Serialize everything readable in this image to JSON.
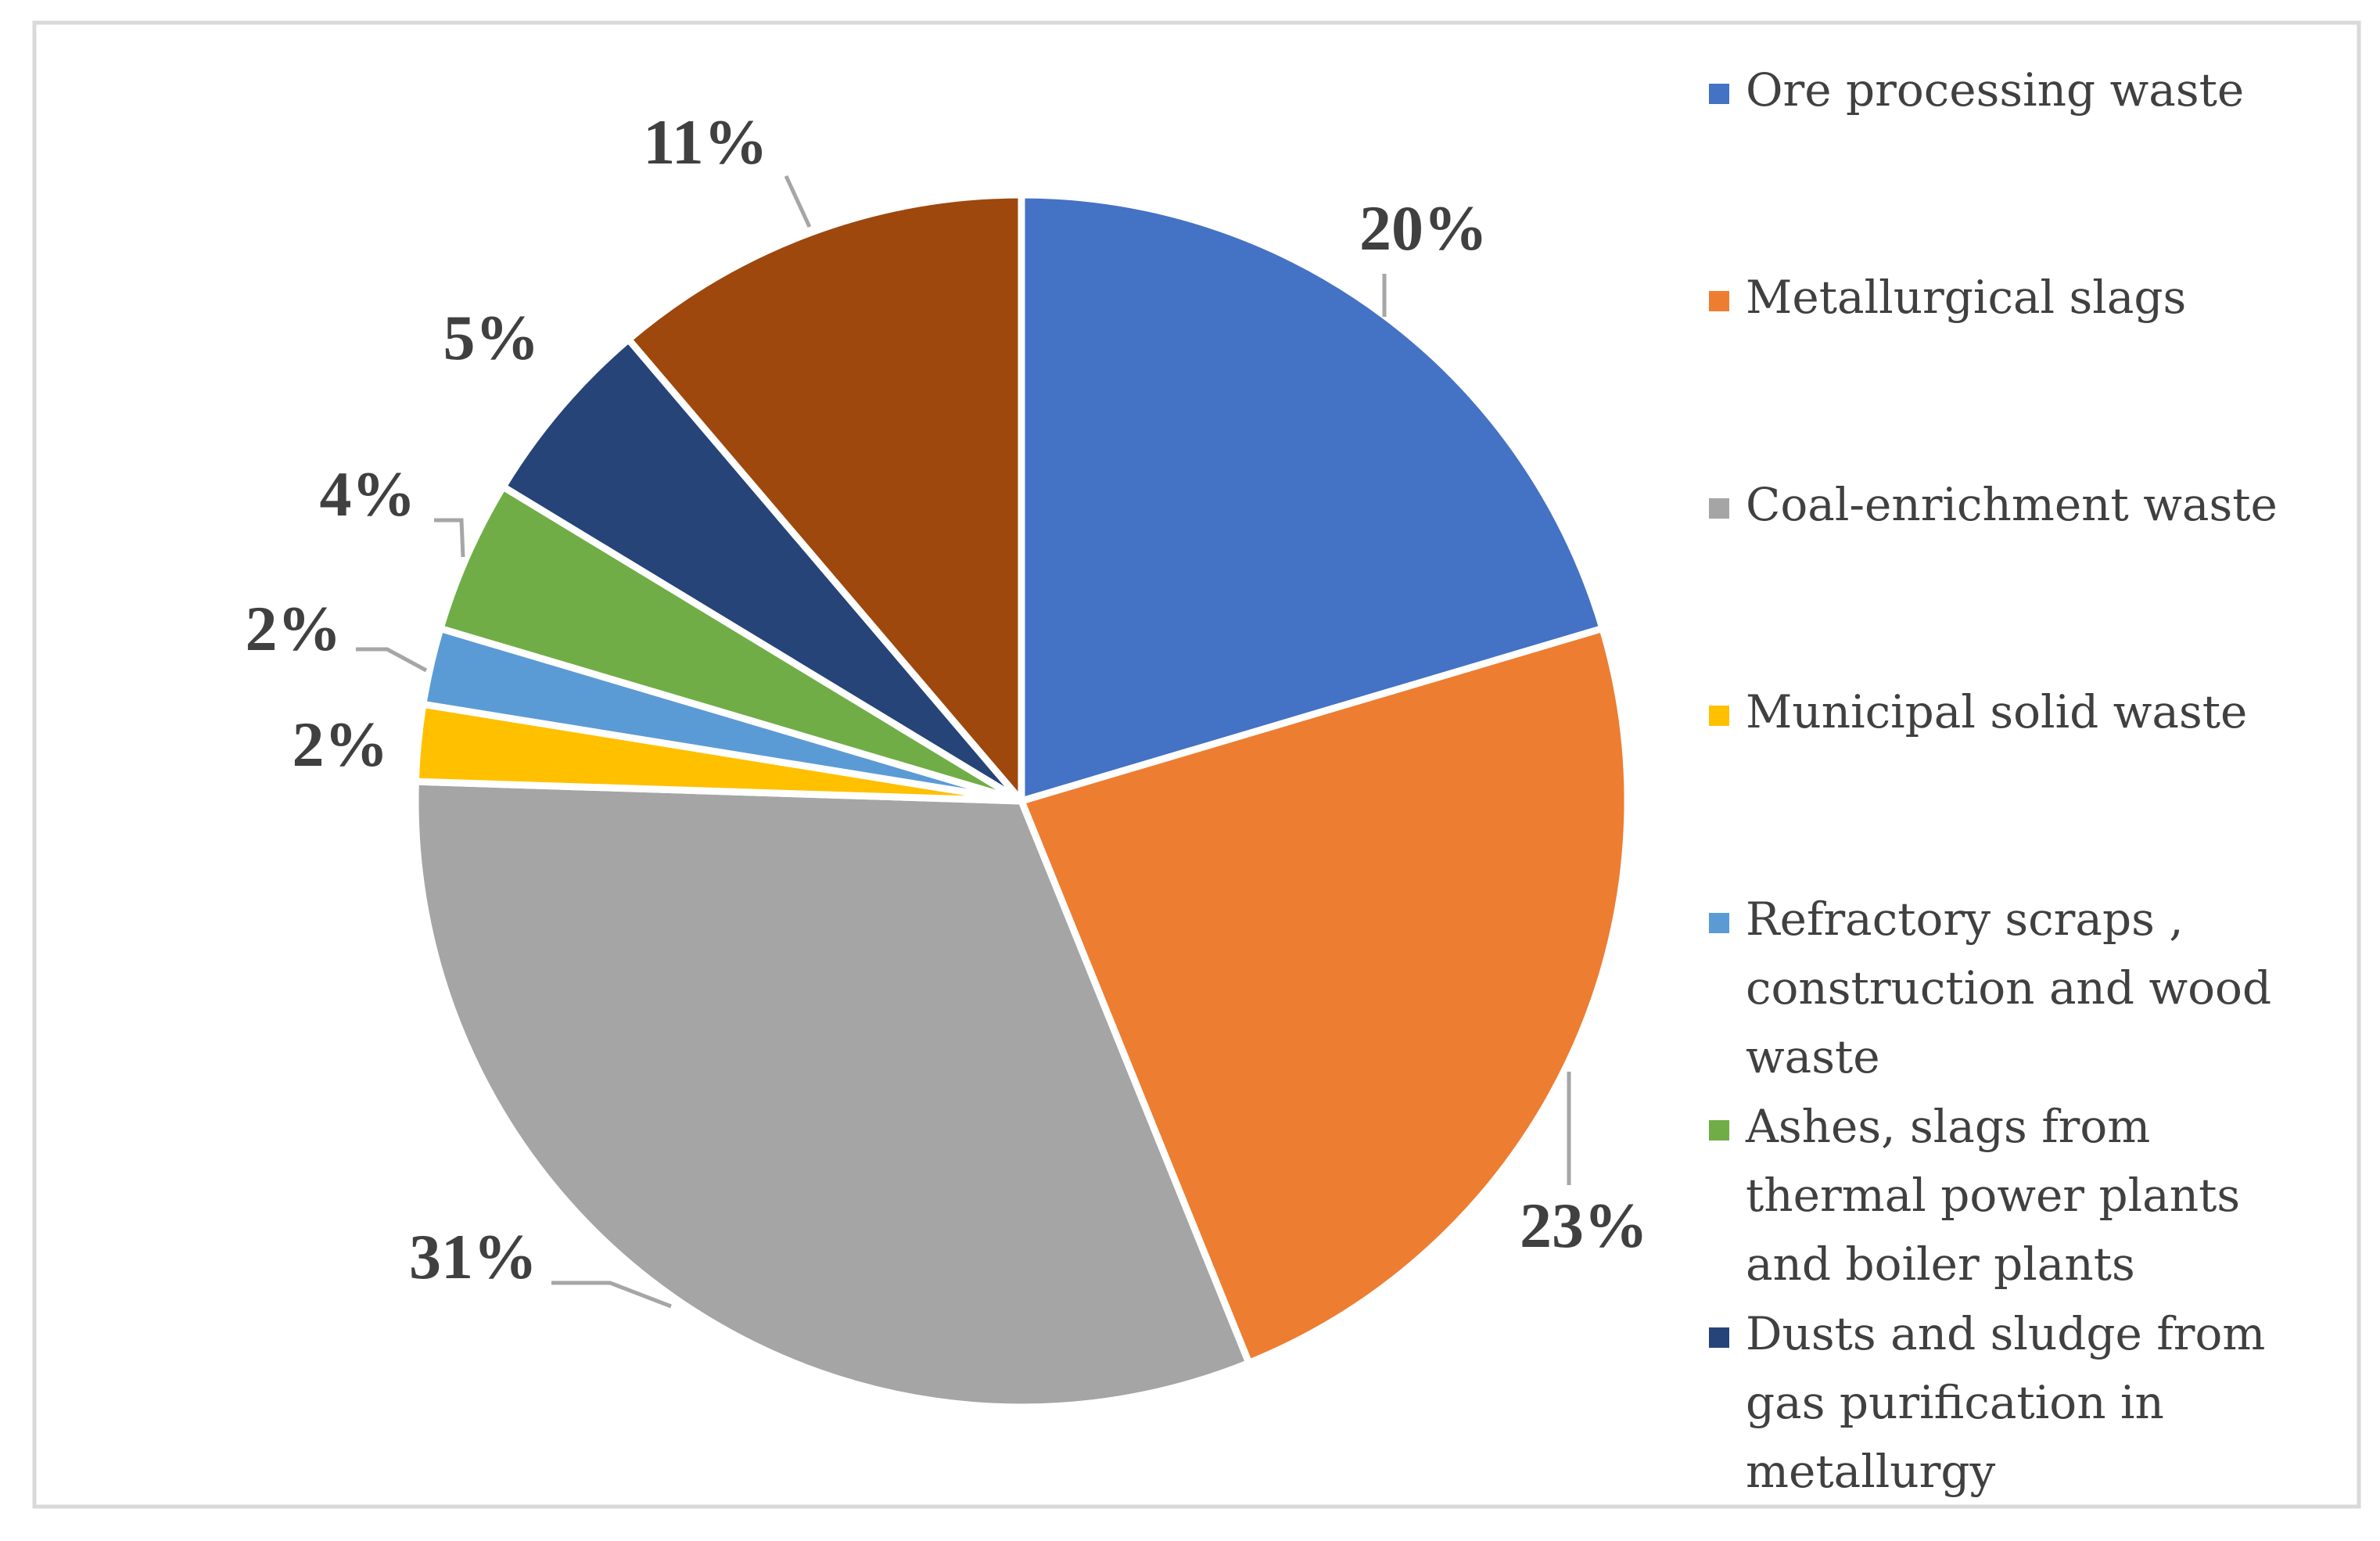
{
  "chart_data": {
    "type": "pie",
    "categories": [
      "Ore processing waste",
      "Metallurgical slags",
      "Coal-enrichment waste",
      "Municipal solid waste",
      "Refractory scraps , construction and wood waste",
      "Ashes, slags from thermal power plants and boiler plants",
      "Dusts and sludge from gas purification in metallurgy",
      ""
    ],
    "values": [
      20,
      23,
      31,
      2,
      2,
      4,
      5,
      11
    ],
    "labels": [
      "20%",
      "23%",
      "31%",
      "2%",
      "2%",
      "4%",
      "5%",
      "11%"
    ],
    "colors": [
      "#4472C4",
      "#ED7D31",
      "#A5A5A5",
      "#FFC000",
      "#5B9BD5",
      "#70AD47",
      "#264478",
      "#9E480E"
    ],
    "legend": [
      {
        "lines": [
          "Ore processing waste"
        ],
        "color": "#4472C4"
      },
      {
        "lines": [
          "Metallurgical slags"
        ],
        "color": "#ED7D31"
      },
      {
        "lines": [
          "Coal-enrichment waste"
        ],
        "color": "#A5A5A5"
      },
      {
        "lines": [
          "Municipal solid waste"
        ],
        "color": "#FFC000"
      },
      {
        "lines": [
          " Refractory scraps ,",
          "construction and wood",
          "waste"
        ],
        "color": "#5B9BD5"
      },
      {
        "lines": [
          "Ashes, slags from",
          "thermal power plants",
          "and boiler plants"
        ],
        "color": "#70AD47"
      },
      {
        "lines": [
          "Dusts and sludge from",
          "gas purification in",
          "metallurgy"
        ],
        "color": "#264478"
      }
    ],
    "legend_position": "right",
    "start_angle": "top, clockwise",
    "title": ""
  }
}
